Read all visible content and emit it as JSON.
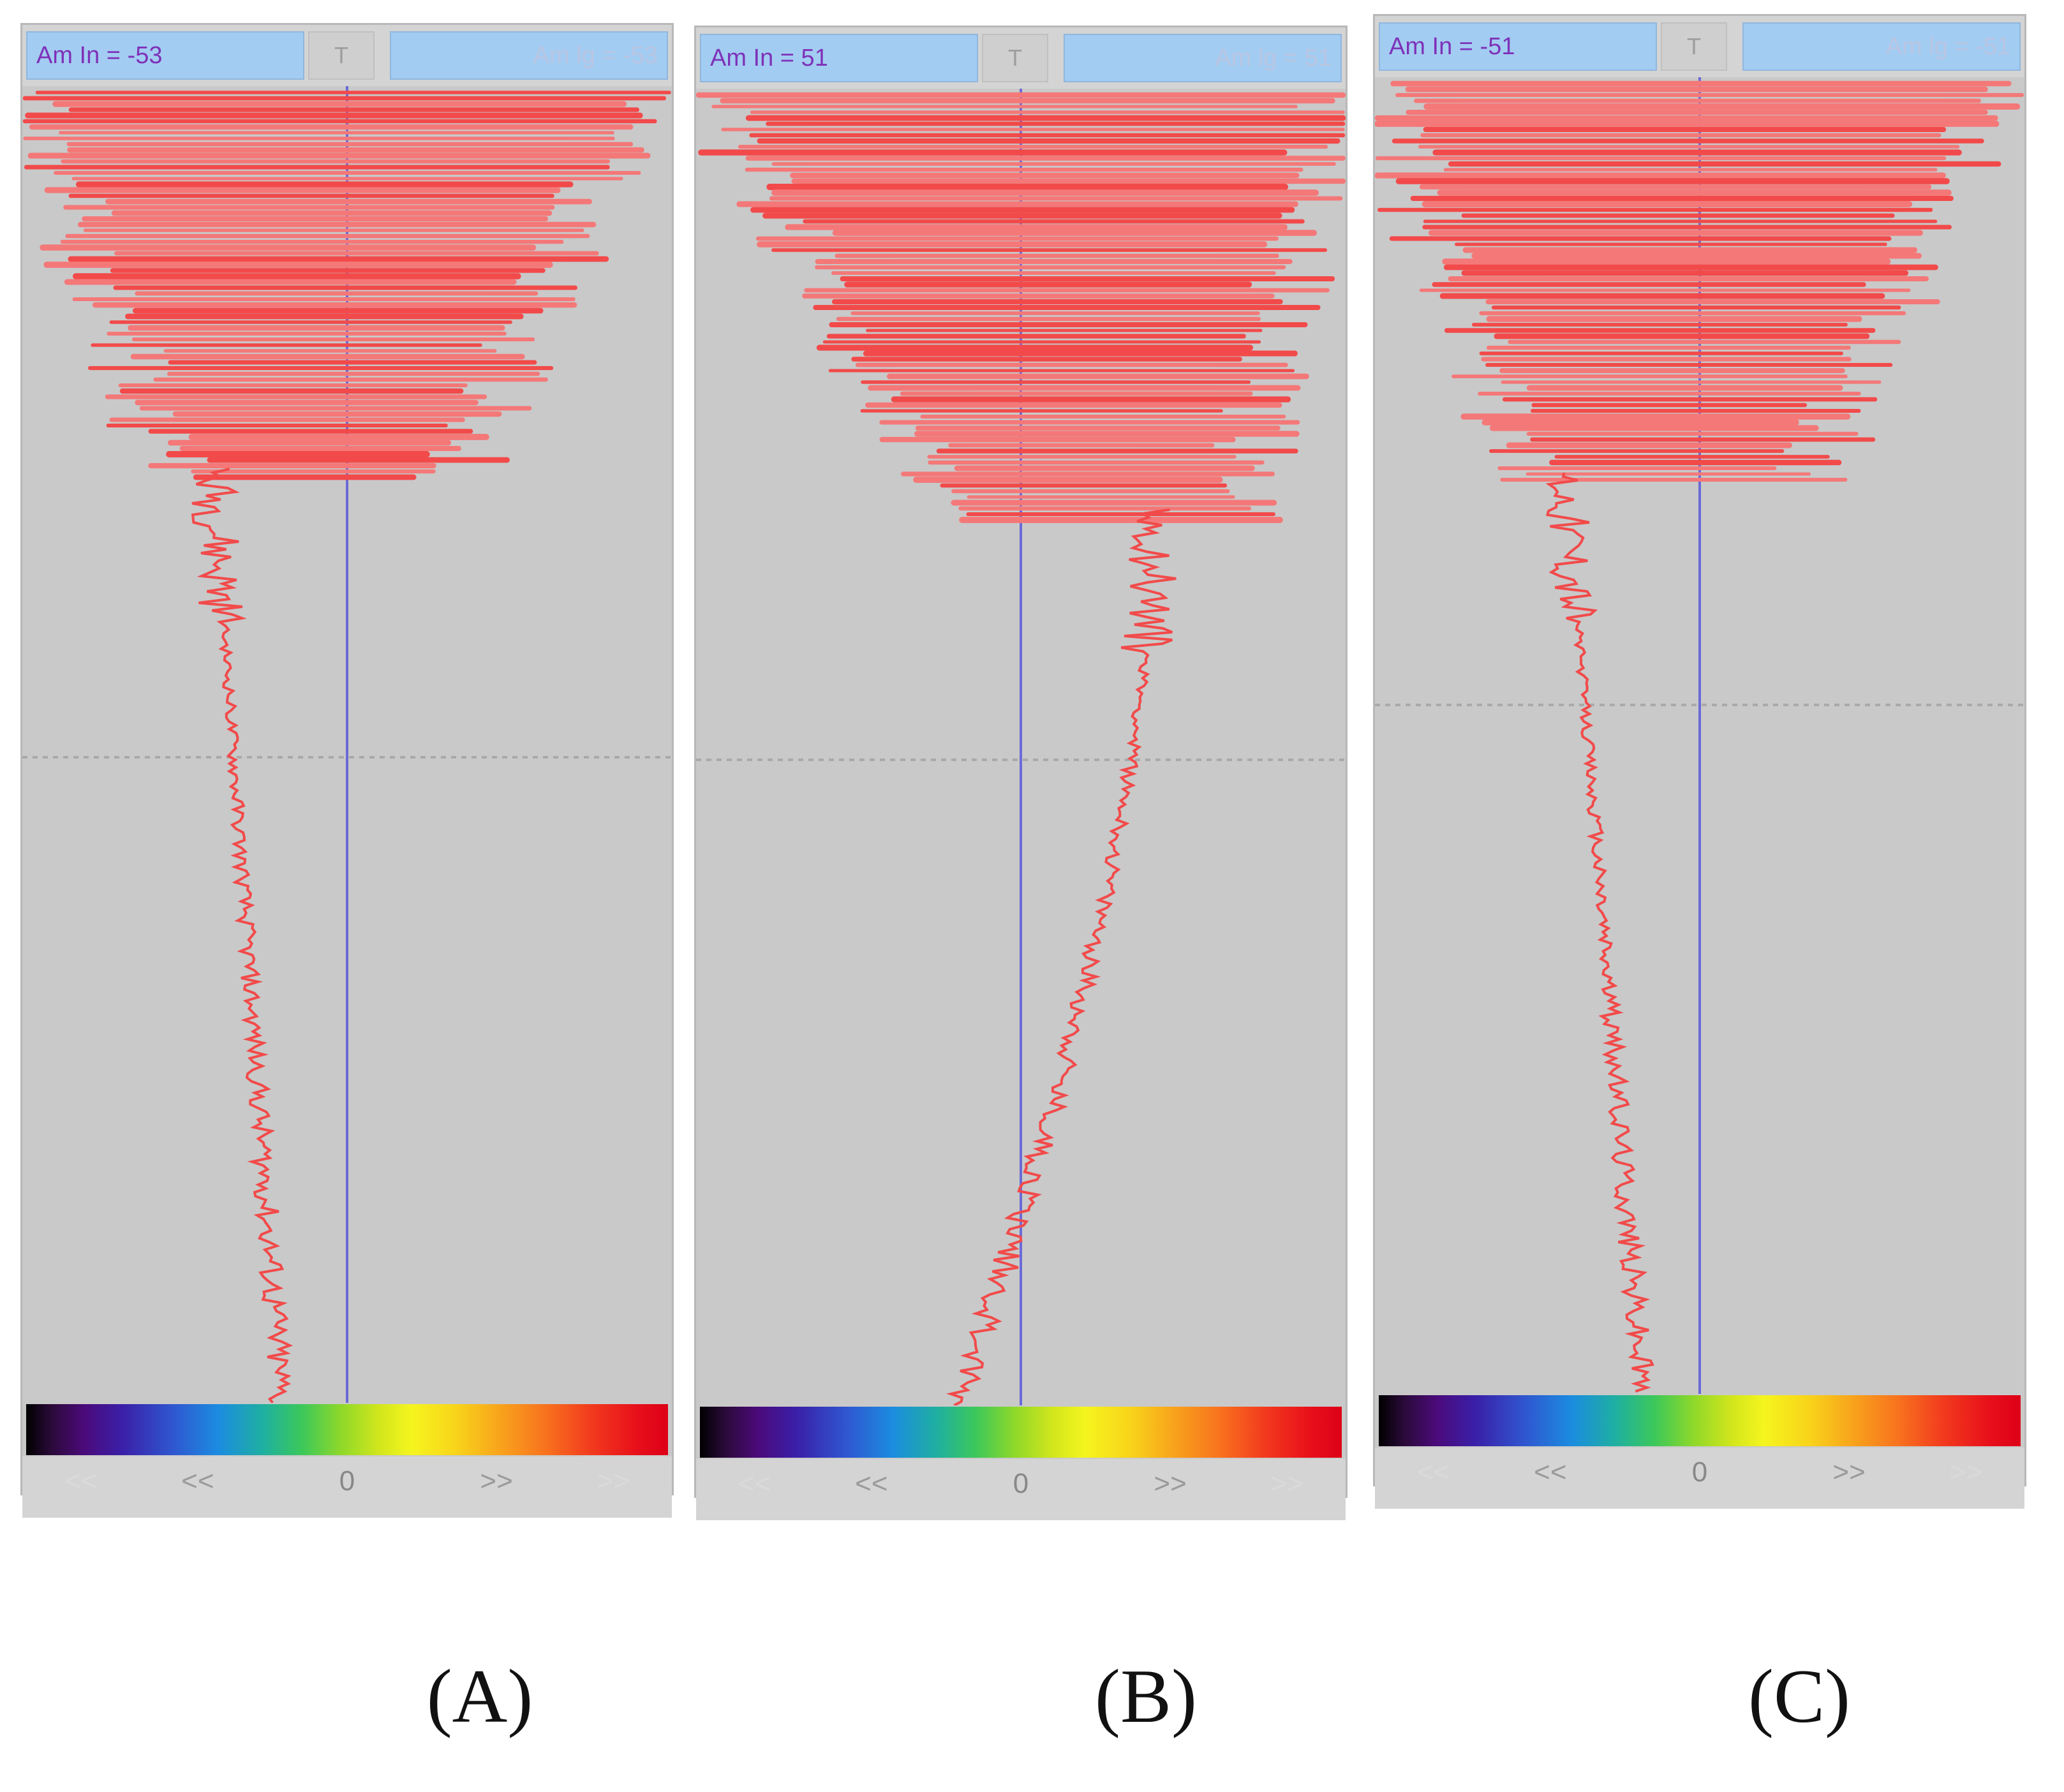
{
  "panels": [
    {
      "id": "A",
      "amp_in_label": "Am In = -53",
      "amp_lg_label": "Am lg = -53",
      "t_button": "T",
      "nav": {
        "far_left": "<<",
        "left": "<<",
        "center": "0",
        "right": ">>",
        "far_right": ">>"
      },
      "caption": "(A)"
    },
    {
      "id": "B",
      "amp_in_label": "Am In = 51",
      "amp_lg_label": "Am lg = 51",
      "t_button": "T",
      "nav": {
        "far_left": "<<",
        "left": "<<",
        "center": "0",
        "right": ">>",
        "far_right": ">>"
      },
      "caption": "(B)"
    },
    {
      "id": "C",
      "amp_in_label": "Am In = -51",
      "amp_lg_label": "Am lg = -51",
      "t_button": "T",
      "nav": {
        "far_left": "<<",
        "left": "<<",
        "center": "0",
        "right": ">>",
        "far_right": ">>"
      },
      "caption": "(C)"
    }
  ],
  "colors": {
    "trace": "#f24a4a",
    "burst": "#f47878",
    "zero_line": "#6a6ad8",
    "panel_bg": "#c9c9c9",
    "field_bg": "#a3ccf2",
    "field_text": "#7e32b8"
  }
}
